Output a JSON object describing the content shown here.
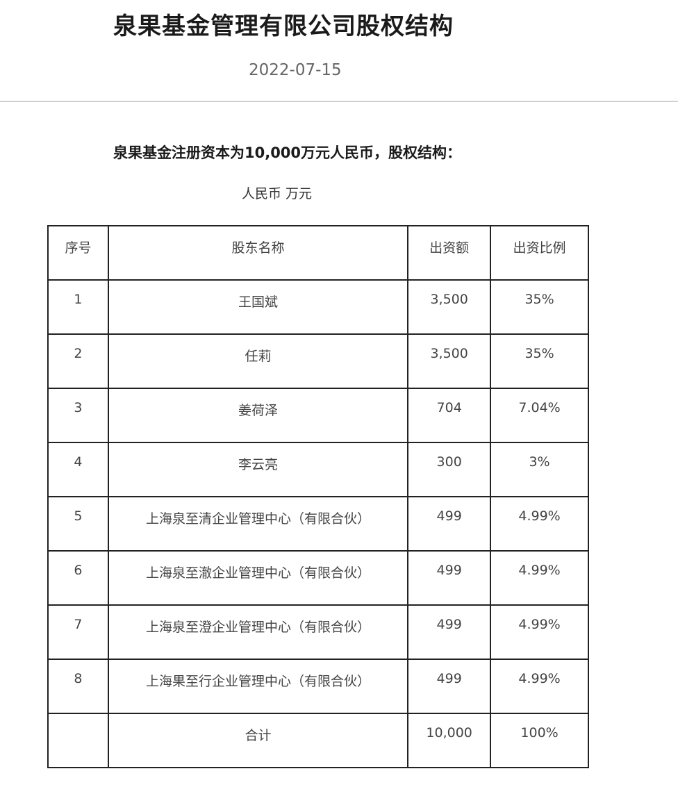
{
  "header": {
    "title": "泉果基金管理有限公司股权结构",
    "date": "2022-07-15"
  },
  "body": {
    "subtitle": "泉果基金注册资本为10,000万元人民币，股权结构：",
    "unit": "人民币 万元"
  },
  "table": {
    "columns": [
      "序号",
      "股东名称",
      "出资额",
      "出资比例"
    ],
    "rows": [
      [
        "1",
        "王国斌",
        "3,500",
        "35%"
      ],
      [
        "2",
        "任莉",
        "3,500",
        "35%"
      ],
      [
        "3",
        "姜荷泽",
        "704",
        "7.04%"
      ],
      [
        "4",
        "李云亮",
        "300",
        "3%"
      ],
      [
        "5",
        "上海泉至清企业管理中心（有限合伙）",
        "499",
        "4.99%"
      ],
      [
        "6",
        "上海泉至澈企业管理中心（有限合伙）",
        "499",
        "4.99%"
      ],
      [
        "7",
        "上海泉至澄企业管理中心（有限合伙）",
        "499",
        "4.99%"
      ],
      [
        "8",
        "上海果至行企业管理中心（有限合伙）",
        "499",
        "4.99%"
      ],
      [
        "",
        "合计",
        "10,000",
        "100%"
      ]
    ]
  }
}
